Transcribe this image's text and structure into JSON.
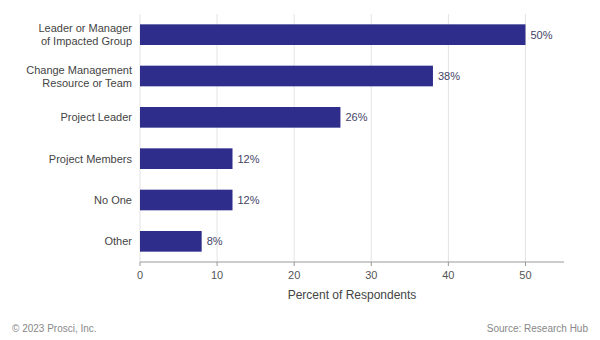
{
  "chart_data": {
    "type": "bar",
    "orientation": "horizontal",
    "categories": [
      "Other",
      "No One",
      "Project Members",
      "Project Leader",
      "Change Management\nResource or Team",
      "Leader or Manager\nof Impacted Group"
    ],
    "values": [
      8,
      12,
      12,
      26,
      38,
      50
    ],
    "value_labels": [
      "8%",
      "12%",
      "12%",
      "26%",
      "38%",
      "50%"
    ],
    "data_labels": true,
    "color": "#2e2d8b",
    "xlabel": "Percent of Respondents",
    "xlim": [
      0,
      55
    ],
    "xticks": [
      0,
      10,
      20,
      30,
      40,
      50
    ],
    "grid": true,
    "annotations": [
      "© 2023 Prosci, Inc.",
      "Source: Research Hub"
    ]
  }
}
